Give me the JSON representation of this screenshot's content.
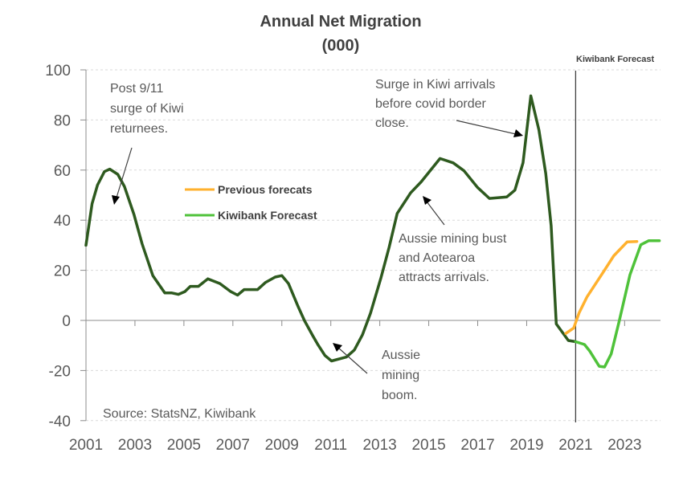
{
  "chart_data": {
    "type": "line",
    "title": "Annual Net Migration",
    "subtitle": "(000)",
    "xlabel": "",
    "ylabel": "",
    "xlim": [
      2001,
      2024.5
    ],
    "ylim": [
      -40,
      100
    ],
    "y_ticks": [
      "100",
      "80",
      "60",
      "40",
      "20",
      "0",
      "-20",
      "-40"
    ],
    "x_ticks": [
      "2001",
      "2003",
      "2005",
      "2007",
      "2009",
      "2011",
      "2013",
      "2015",
      "2017",
      "2019",
      "2021",
      "2023"
    ],
    "grid": "horizontal dashed",
    "legend_placement": "center-left",
    "forecast_marker": {
      "x": 2021,
      "label": "Kiwibank Forecast"
    },
    "source": "Source: StatsNZ, Kiwibank",
    "annotations": [
      {
        "lines": [
          "Post 9/11",
          "surge of Kiwi",
          "returnees."
        ]
      },
      {
        "lines": [
          "Surge in Kiwi arrivals",
          "before covid  border",
          "close."
        ]
      },
      {
        "lines": [
          "Aussie mining bust",
          "and Aotearoa",
          "attracts arrivals."
        ]
      },
      {
        "lines": [
          "Aussie",
          "mining",
          "boom."
        ]
      }
    ],
    "series": [
      {
        "name": "",
        "color": "#2e5a1f",
        "legend": false,
        "x": [
          2001,
          2001.25,
          2001.47,
          2001.75,
          2001.97,
          2002.3,
          2002.57,
          2002.96,
          2003.29,
          2003.73,
          2004.22,
          2004.49,
          2004.77,
          2005.04,
          2005.26,
          2005.59,
          2005.98,
          2006.47,
          2006.91,
          2007.19,
          2007.46,
          2008.01,
          2008.34,
          2008.73,
          2009.0,
          2009.27,
          2009.66,
          2009.93,
          2010.26,
          2010.48,
          2010.76,
          2011.03,
          2011.64,
          2011.96,
          2012.29,
          2012.62,
          2013.05,
          2013.38,
          2013.71,
          2014.26,
          2014.69,
          2015.46,
          2016.0,
          2016.44,
          2016.99,
          2017.48,
          2018.19,
          2018.52,
          2018.85,
          2019.17,
          2019.5,
          2019.78,
          2020.0,
          2020.21,
          2020.7,
          2021.0
        ],
        "y": [
          30,
          46.6,
          54,
          59.4,
          60.4,
          58.3,
          53.5,
          42.3,
          30.6,
          17.9,
          11,
          11,
          10.4,
          11.5,
          13.6,
          13.6,
          16.6,
          14.7,
          11.5,
          10.1,
          12.3,
          12.3,
          15.2,
          17.3,
          17.9,
          14.7,
          5.6,
          -0.2,
          -6.1,
          -9.8,
          -14,
          -16.2,
          -14.6,
          -11.8,
          -5.8,
          2.9,
          17.1,
          29.1,
          42.7,
          50.9,
          55.3,
          64.6,
          62.9,
          59.7,
          53.1,
          48.7,
          49.3,
          52,
          62.9,
          89.6,
          76,
          58.6,
          37.8,
          -1.4,
          -8,
          -8.5
        ]
      },
      {
        "name": "Previous forecats",
        "color": "#ffb12e",
        "legend": true,
        "x": [
          2020.6,
          2020.92,
          2021.14,
          2021.47,
          2022.13,
          2022.56,
          2023.1,
          2023.5
        ],
        "y": [
          -5.2,
          -3,
          3,
          9.5,
          19.3,
          25.8,
          31.3,
          31.5
        ]
      },
      {
        "name": "Kiwibank Forecast",
        "color": "#4fc23a",
        "legend": true,
        "x": [
          2021,
          2021.36,
          2021.58,
          2021.96,
          2022.18,
          2022.45,
          2022.78,
          2023.22,
          2023.66,
          2023.98,
          2024.42
        ],
        "y": [
          -8.5,
          -9.6,
          -12.3,
          -18.3,
          -18.6,
          -13.4,
          -0.3,
          18.2,
          30.2,
          31.8,
          31.8
        ]
      }
    ]
  }
}
